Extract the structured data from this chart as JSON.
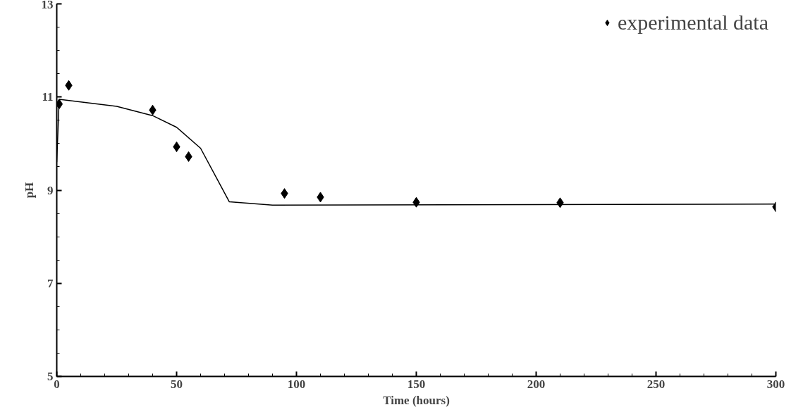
{
  "chart_data": {
    "type": "scatter",
    "xlabel": "Time (hours)",
    "ylabel": "pH",
    "xlim": [
      0,
      300
    ],
    "xticks": [
      0,
      50,
      100,
      150,
      200,
      250,
      300
    ],
    "ylim": [
      5,
      13
    ],
    "yticks": [
      5,
      7,
      9,
      11,
      13
    ],
    "grid": false,
    "legend": "top right",
    "series": [
      {
        "name": "experimental data",
        "marker": "diamond",
        "color": "#000000",
        "x": [
          1,
          5,
          40,
          50,
          55,
          95,
          110,
          150,
          210,
          300
        ],
        "values": [
          10.85,
          11.25,
          10.72,
          9.93,
          9.72,
          8.93,
          8.85,
          8.74,
          8.73,
          8.64
        ]
      },
      {
        "type": "line",
        "line_style": "solid",
        "color": "#000000",
        "x": [
          0,
          1,
          25,
          40,
          50,
          60,
          72,
          90,
          300
        ],
        "values": [
          9.6,
          10.95,
          10.8,
          10.6,
          10.35,
          9.9,
          8.75,
          8.68,
          8.7
        ]
      }
    ]
  }
}
